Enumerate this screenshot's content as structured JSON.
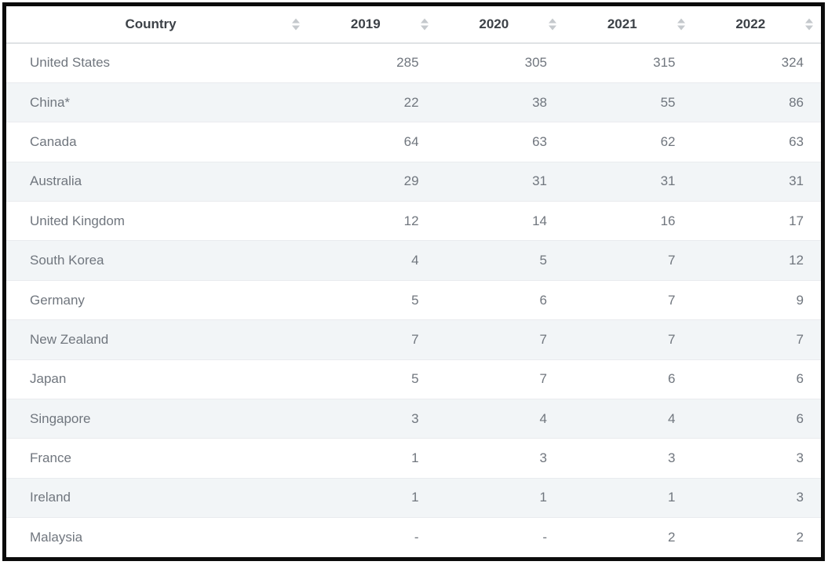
{
  "chart_data": {
    "type": "table",
    "columns": [
      "Country",
      "2019",
      "2020",
      "2021",
      "2022"
    ],
    "rows": [
      [
        "United States",
        "285",
        "305",
        "315",
        "324"
      ],
      [
        "China*",
        "22",
        "38",
        "55",
        "86"
      ],
      [
        "Canada",
        "64",
        "63",
        "62",
        "63"
      ],
      [
        "Australia",
        "29",
        "31",
        "31",
        "31"
      ],
      [
        "United Kingdom",
        "12",
        "14",
        "16",
        "17"
      ],
      [
        "South Korea",
        "4",
        "5",
        "7",
        "12"
      ],
      [
        "Germany",
        "5",
        "6",
        "7",
        "9"
      ],
      [
        "New Zealand",
        "7",
        "7",
        "7",
        "7"
      ],
      [
        "Japan",
        "5",
        "7",
        "6",
        "6"
      ],
      [
        "Singapore",
        "3",
        "4",
        "4",
        "6"
      ],
      [
        "France",
        "1",
        "3",
        "3",
        "3"
      ],
      [
        "Ireland",
        "1",
        "1",
        "1",
        "3"
      ],
      [
        "Malaysia",
        "-",
        "-",
        "2",
        "2"
      ]
    ],
    "title": "",
    "layout_hints": {
      "sortable_columns": true,
      "striped_rows": true,
      "stripe_pattern": "even-rows-shaded",
      "value_alignment": "right",
      "country_alignment": "left",
      "header_alignment": "center"
    }
  },
  "colors": {
    "frame_border": "#0b0b0b",
    "header_text": "#3c4147",
    "body_text": "#70767e",
    "stripe_bg": "#f2f5f7",
    "divider": "#e9ebee",
    "header_divider": "#dfe2e5",
    "sort_icon": "#c5c9cd",
    "background": "#ffffff"
  }
}
